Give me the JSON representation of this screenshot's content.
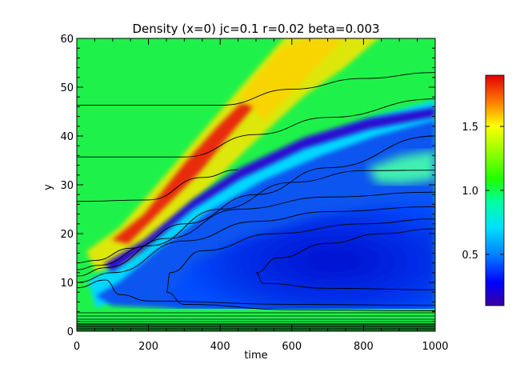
{
  "chart_data": {
    "type": "heatmap",
    "title": "Density (x=0) jc=0.1 r=0.02 beta=0.003",
    "xlabel": "time",
    "ylabel": "y",
    "xlim": [
      0,
      1000
    ],
    "ylim": [
      0,
      60
    ],
    "x_ticks": [
      "0",
      "200",
      "400",
      "600",
      "800",
      "1000"
    ],
    "y_ticks": [
      "0",
      "10",
      "20",
      "30",
      "40",
      "50",
      "60"
    ],
    "colorbar": {
      "range": [
        0.1,
        1.9
      ],
      "ticks": [
        "0.5",
        "1.0",
        "1.5"
      ],
      "colormap": "rainbow"
    },
    "background_level": 1.15,
    "features": [
      {
        "kind": "high-density ridge",
        "peak": 1.85,
        "path": [
          [
            20,
            16
          ],
          [
            200,
            22
          ],
          [
            400,
            40
          ],
          [
            600,
            60
          ]
        ]
      },
      {
        "kind": "low-density cavity",
        "floor": 0.22,
        "path": [
          [
            120,
            7
          ],
          [
            300,
            20
          ],
          [
            600,
            32
          ],
          [
            1000,
            40
          ]
        ]
      },
      {
        "kind": "bottom boundary layer",
        "y_range": [
          0,
          3
        ],
        "level": 1.15
      }
    ],
    "contours": [
      {
        "level": "outer-1",
        "path": [
          [
            0,
            46.3
          ],
          [
            400,
            46.3
          ],
          [
            600,
            49.6
          ],
          [
            800,
            51.8
          ],
          [
            1000,
            53
          ]
        ]
      },
      {
        "level": "outer-2",
        "path": [
          [
            0,
            35.7
          ],
          [
            300,
            35.7
          ],
          [
            500,
            40.3
          ],
          [
            700,
            43.8
          ],
          [
            1000,
            47.6
          ]
        ]
      },
      {
        "level": "outer-3",
        "path": [
          [
            0,
            26.6
          ],
          [
            200,
            26.9
          ],
          [
            350,
            31.5
          ],
          [
            450,
            33.1
          ]
        ]
      },
      {
        "level": "cavity-1",
        "path": [
          [
            0,
            14
          ],
          [
            50,
            14.5
          ],
          [
            150,
            17
          ],
          [
            300,
            22
          ],
          [
            500,
            28
          ],
          [
            700,
            33.5
          ],
          [
            1000,
            40
          ]
        ]
      },
      {
        "level": "cavity-2",
        "path": [
          [
            0,
            12.6
          ],
          [
            60,
            13.5
          ],
          [
            200,
            17.5
          ],
          [
            400,
            25
          ],
          [
            600,
            30.5
          ],
          [
            800,
            32.9
          ],
          [
            1000,
            33
          ]
        ]
      },
      {
        "level": "cavity-3",
        "path": [
          [
            0,
            11.3
          ],
          [
            80,
            13
          ],
          [
            250,
            19
          ],
          [
            450,
            25
          ],
          [
            700,
            27.5
          ],
          [
            1000,
            28.5
          ]
        ]
      },
      {
        "level": "cavity-4",
        "path": [
          [
            0,
            10
          ],
          [
            100,
            12
          ],
          [
            300,
            18.5
          ],
          [
            500,
            22.5
          ],
          [
            700,
            24.5
          ],
          [
            1000,
            25.5
          ]
        ]
      },
      {
        "level": "cavity-5",
        "path": [
          [
            0,
            8.9
          ],
          [
            80,
            10.5
          ],
          [
            120,
            7.5
          ],
          [
            200,
            6.2
          ],
          [
            600,
            5.5
          ],
          [
            1000,
            5.3
          ]
        ]
      },
      {
        "level": "inner-1",
        "path": [
          [
            1000,
            4.2
          ],
          [
            600,
            4.4
          ],
          [
            300,
            5.5
          ],
          [
            250,
            8
          ],
          [
            260,
            12
          ],
          [
            350,
            16.5
          ],
          [
            550,
            20
          ],
          [
            800,
            22
          ],
          [
            1000,
            23
          ]
        ]
      },
      {
        "level": "inner-2",
        "path": [
          [
            1000,
            8.5
          ],
          [
            700,
            8.8
          ],
          [
            520,
            9.8
          ],
          [
            500,
            12
          ],
          [
            560,
            15
          ],
          [
            700,
            18
          ],
          [
            850,
            20
          ],
          [
            1000,
            21
          ]
        ]
      }
    ]
  }
}
